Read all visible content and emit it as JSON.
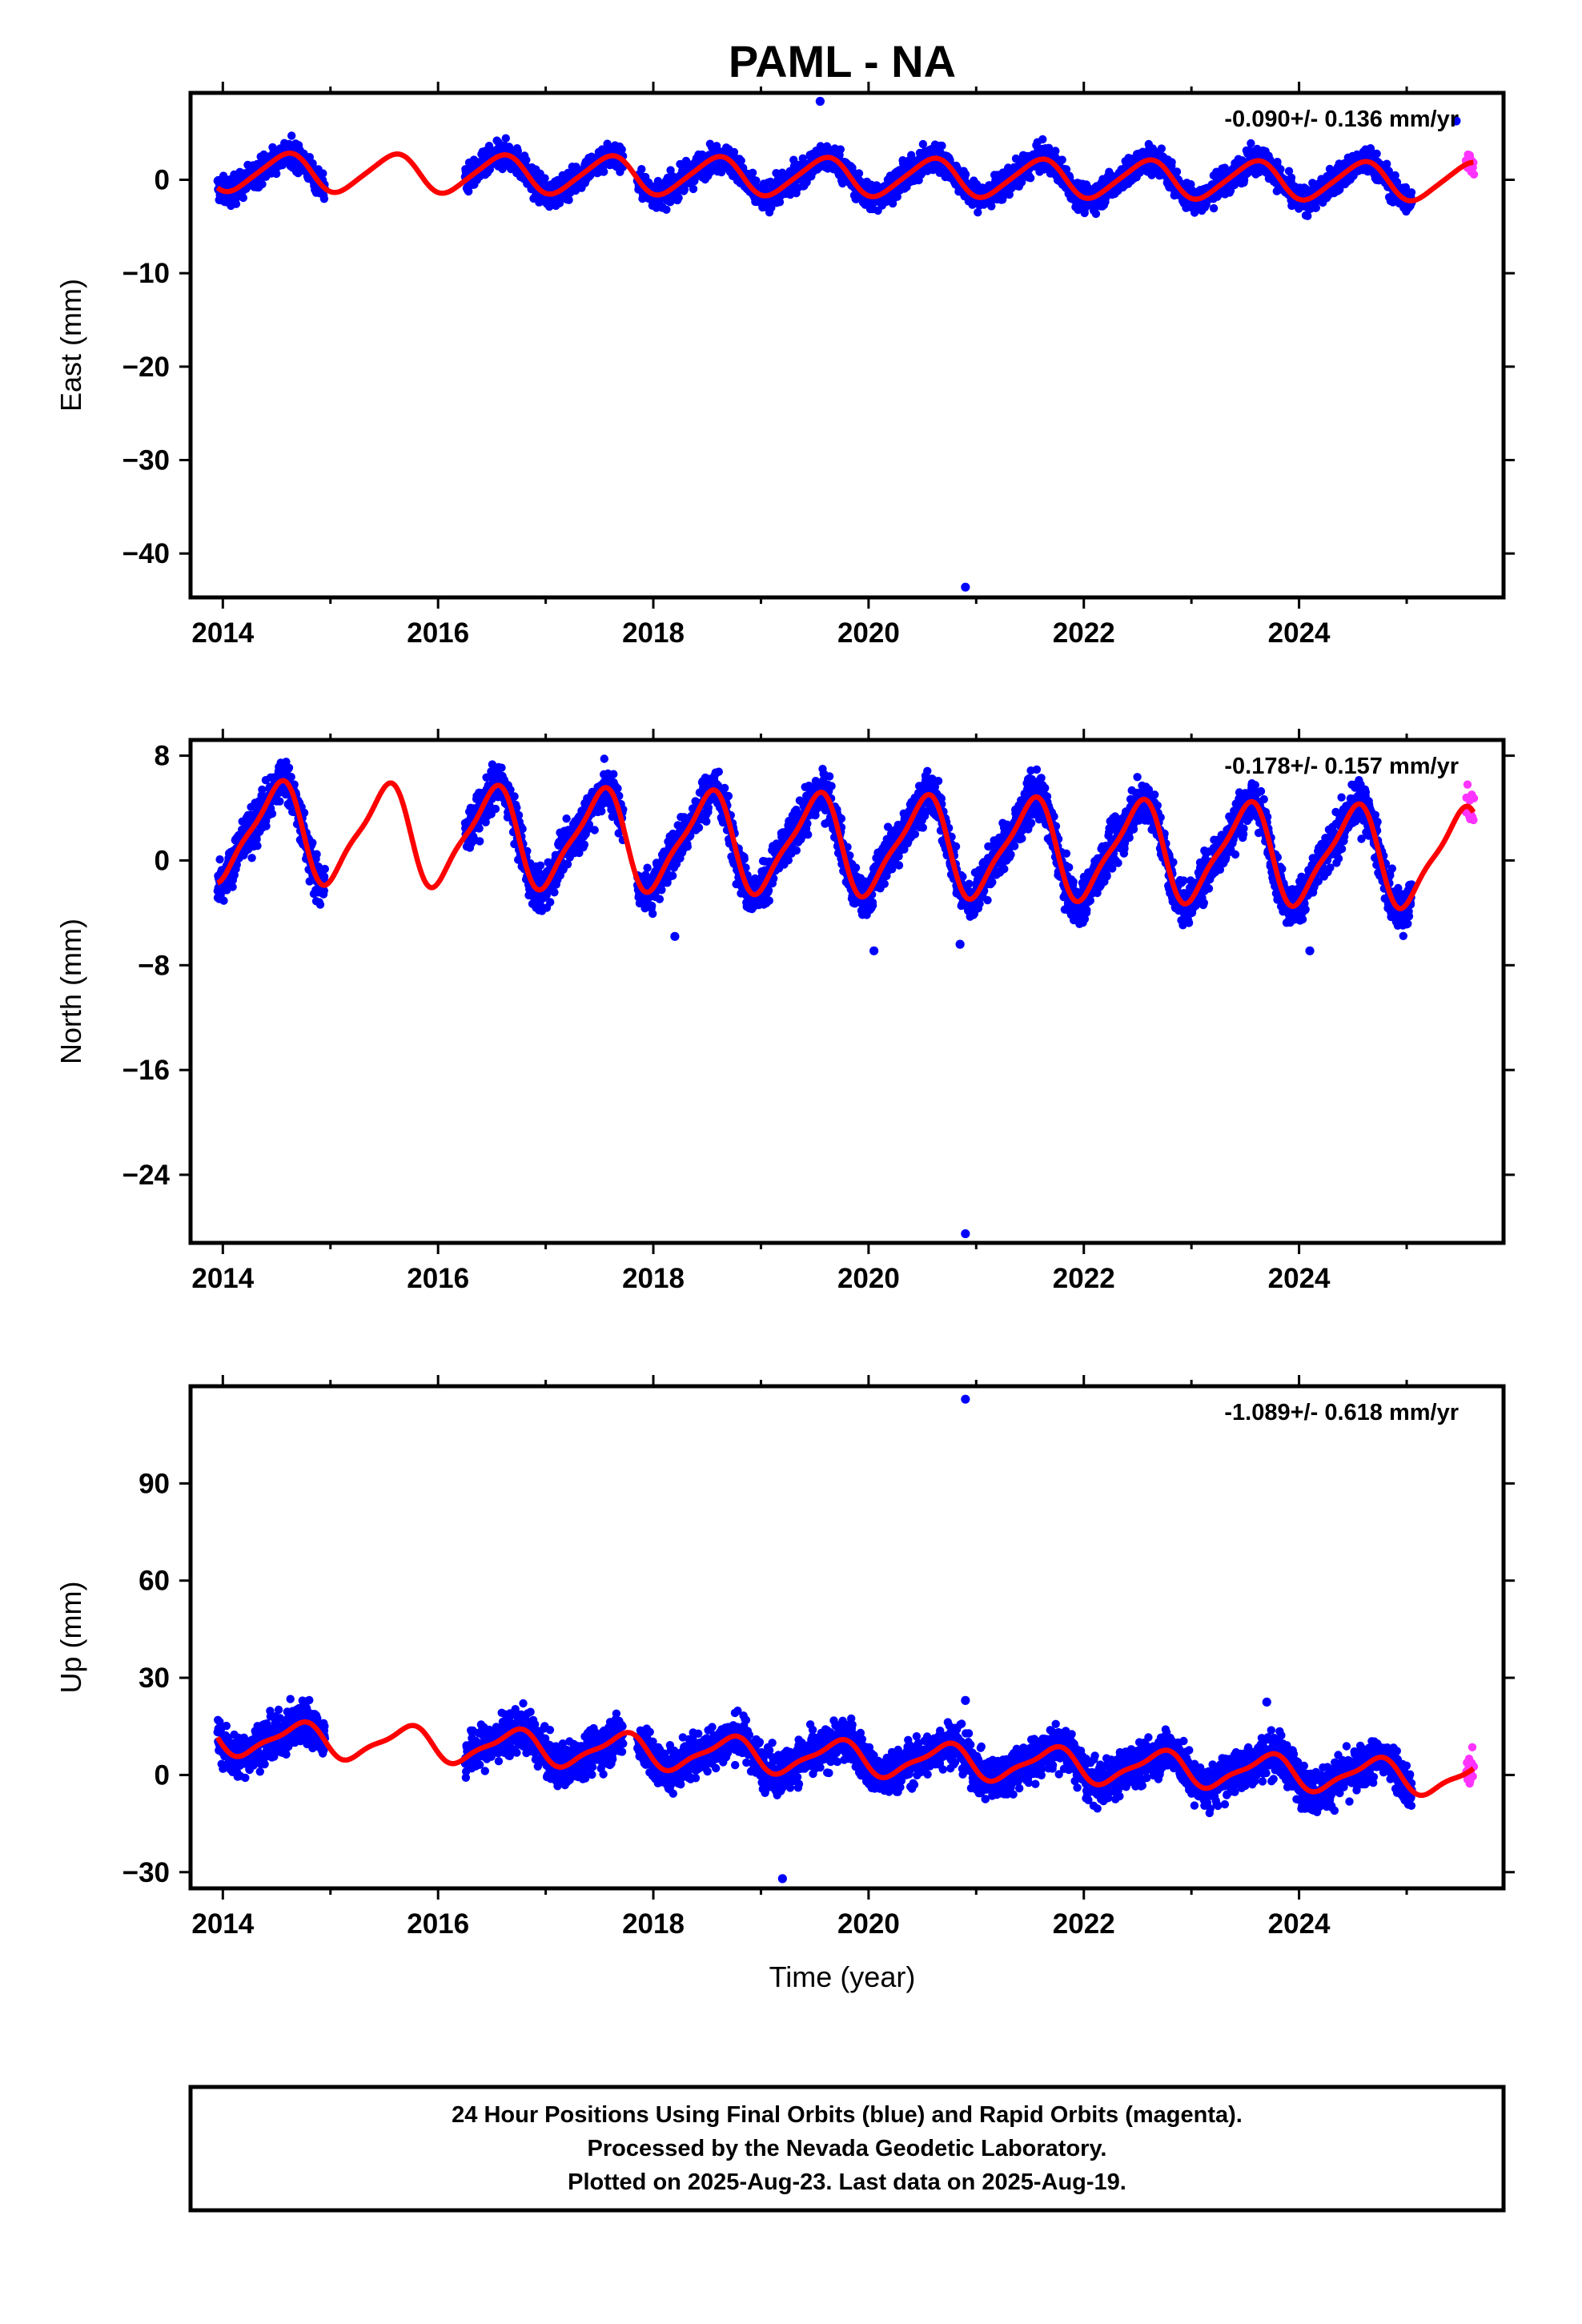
{
  "title": "PAML - NA",
  "xlabel": "Time (year)",
  "caption": [
    "24 Hour Positions Using Final Orbits (blue) and Rapid Orbits (magenta).",
    "Processed by the Nevada Geodetic Laboratory.",
    "Plotted on 2025-Aug-23. Last data on 2025-Aug-19."
  ],
  "colors": {
    "final": "#0000ff",
    "rapid": "#ff33ff",
    "model": "#ff0000",
    "frame": "#000000"
  },
  "chart_data": [
    {
      "type": "scatter",
      "title": "PAML - NA",
      "ylabel": "East (mm)",
      "rate_label": "-0.090+/- 0.136 mm/yr",
      "xlim": [
        2013.7,
        2025.9
      ],
      "ylim": [
        -44.7,
        9.3
      ],
      "xticks": [
        2014,
        2016,
        2018,
        2020,
        2022,
        2024
      ],
      "yticks": [
        0,
        -10,
        -20,
        -30,
        -40
      ],
      "segments": [
        [
          2013.95,
          2014.95
        ],
        [
          2016.25,
          2017.72
        ],
        [
          2017.85,
          2025.05
        ]
      ],
      "rapid_range": [
        2025.55,
        2025.63
      ],
      "noise": 1.2,
      "model": {
        "offset": 0.3,
        "amp": 2.0,
        "phase": 0.58,
        "semi_amp": 0.3,
        "trend": -0.09,
        "step_time": 2016.0,
        "step": 0.0
      },
      "outliers": [
        {
          "x": 2019.55,
          "y": 8.4
        },
        {
          "x": 2020.9,
          "y": -43.6
        },
        {
          "x": 2025.46,
          "y": 6.3
        }
      ]
    },
    {
      "type": "scatter",
      "ylabel": "North (mm)",
      "rate_label": "-0.178+/- 0.157 mm/yr",
      "xlim": [
        2013.7,
        2025.9
      ],
      "ylim": [
        -29.2,
        9.2
      ],
      "xticks": [
        2014,
        2016,
        2018,
        2020,
        2022,
        2024
      ],
      "yticks": [
        8,
        0,
        -8,
        -16,
        -24
      ],
      "segments": [
        [
          2013.95,
          2014.95
        ],
        [
          2016.25,
          2017.72
        ],
        [
          2017.85,
          2025.05
        ]
      ],
      "rapid_range": [
        2025.55,
        2025.63
      ],
      "noise": 1.4,
      "model": {
        "offset": 1.2,
        "amp": 3.6,
        "phase": 0.5,
        "semi_amp": 0.9,
        "trend": -0.178,
        "step_time": 2016.0,
        "step": 0.0
      },
      "outliers": [
        {
          "x": 2018.2,
          "y": -5.8
        },
        {
          "x": 2020.05,
          "y": -6.9
        },
        {
          "x": 2020.85,
          "y": -6.4
        },
        {
          "x": 2020.9,
          "y": -28.5
        },
        {
          "x": 2024.1,
          "y": -6.9
        }
      ]
    },
    {
      "type": "scatter",
      "ylabel": "Up (mm)",
      "rate_label": "-1.089+/- 0.618 mm/yr",
      "xlim": [
        2013.7,
        2025.9
      ],
      "ylim": [
        -35.0,
        120.0
      ],
      "xticks": [
        2014,
        2016,
        2018,
        2020,
        2022,
        2024
      ],
      "yticks": [
        90,
        60,
        30,
        0,
        -30
      ],
      "segments": [
        [
          2013.95,
          2014.95
        ],
        [
          2016.25,
          2017.72
        ],
        [
          2017.85,
          2025.05
        ]
      ],
      "rapid_range": [
        2025.55,
        2025.63
      ],
      "noise": 5.5,
      "model": {
        "offset": 5.2,
        "amp": 5.0,
        "phase": 0.7,
        "semi_amp": 1.5,
        "trend": -1.089,
        "step_time": 2016.0,
        "step": 0.0
      },
      "outliers": [
        {
          "x": 2020.9,
          "y": 116.0
        },
        {
          "x": 2020.9,
          "y": 23.0
        },
        {
          "x": 2019.2,
          "y": -32.0
        },
        {
          "x": 2023.7,
          "y": 22.5
        }
      ]
    }
  ]
}
